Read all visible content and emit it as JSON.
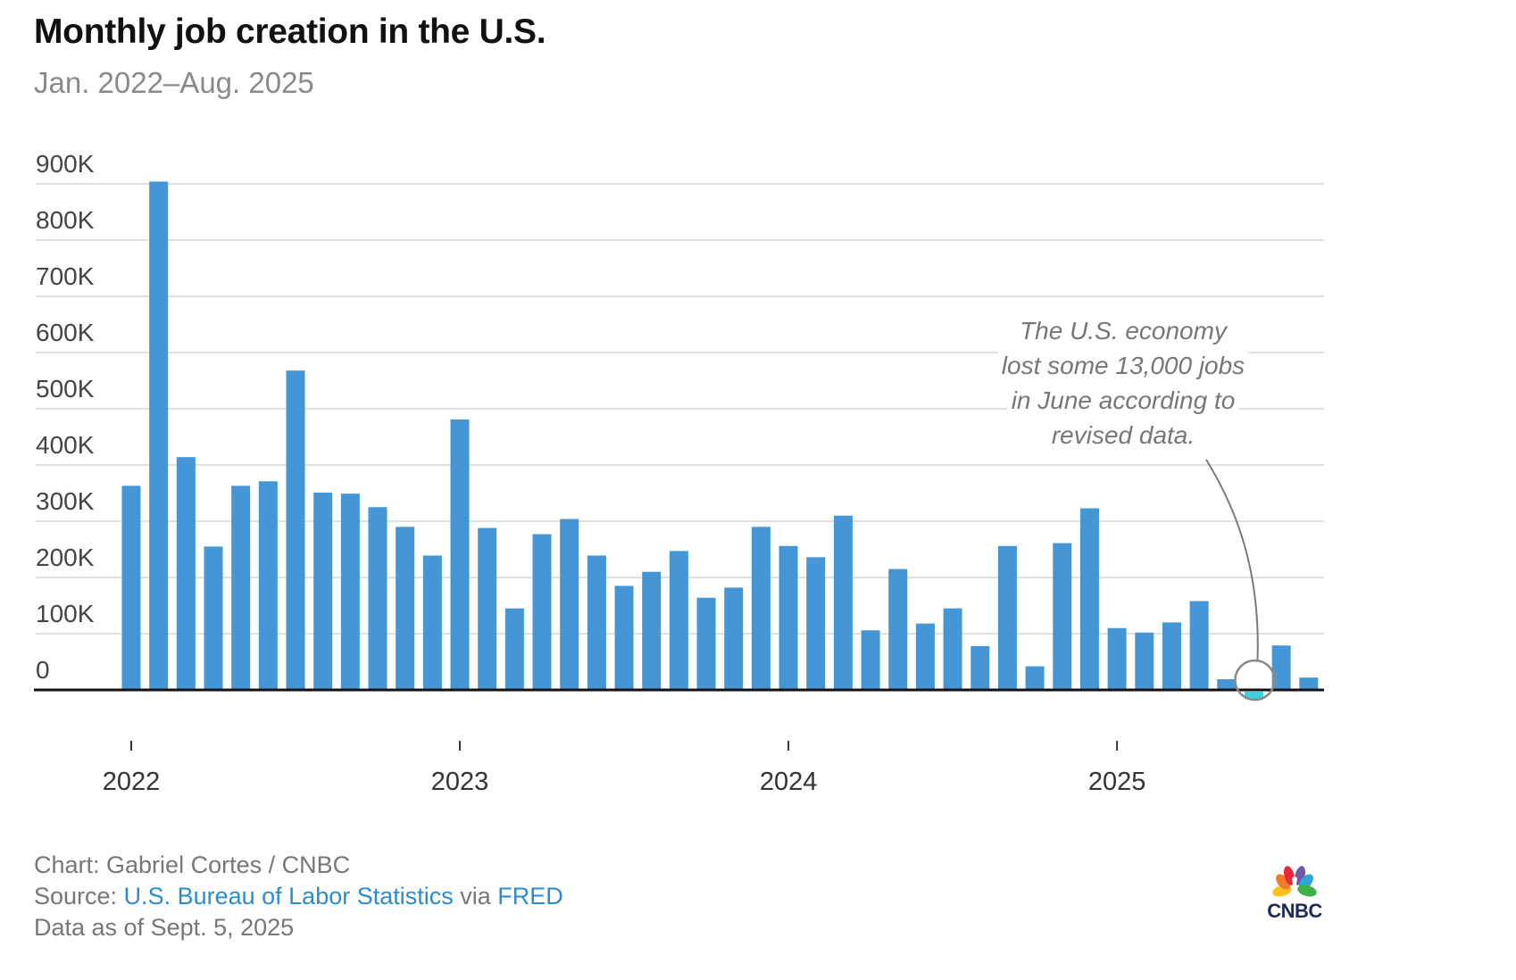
{
  "header": {
    "title": "Monthly job creation in the U.S.",
    "subtitle": "Jan. 2022–Aug. 2025"
  },
  "chart_data": {
    "type": "bar",
    "title": "Monthly job creation in the U.S.",
    "subtitle": "Jan. 2022–Aug. 2025",
    "xlabel": "",
    "ylabel": "",
    "ylim": [
      0,
      900000
    ],
    "y_ticks": [
      0,
      100000,
      200000,
      300000,
      400000,
      500000,
      600000,
      700000,
      800000,
      900000
    ],
    "y_tick_labels": [
      "0",
      "100K",
      "200K",
      "300K",
      "400K",
      "500K",
      "600K",
      "700K",
      "800K",
      "900K"
    ],
    "x_ticks": [
      "2022",
      "2023",
      "2024",
      "2025"
    ],
    "x_tick_months": [
      "Jan 2022",
      "Jan 2023",
      "Jan 2024",
      "Jan 2025"
    ],
    "grid": true,
    "bar_color": "#4596d6",
    "negative_bar_color": "#3fd0df",
    "categories": [
      "Jan 2022",
      "Feb 2022",
      "Mar 2022",
      "Apr 2022",
      "May 2022",
      "Jun 2022",
      "Jul 2022",
      "Aug 2022",
      "Sep 2022",
      "Oct 2022",
      "Nov 2022",
      "Dec 2022",
      "Jan 2023",
      "Feb 2023",
      "Mar 2023",
      "Apr 2023",
      "May 2023",
      "Jun 2023",
      "Jul 2023",
      "Aug 2023",
      "Sep 2023",
      "Oct 2023",
      "Nov 2023",
      "Dec 2023",
      "Jan 2024",
      "Feb 2024",
      "Mar 2024",
      "Apr 2024",
      "May 2024",
      "Jun 2024",
      "Jul 2024",
      "Aug 2024",
      "Sep 2024",
      "Oct 2024",
      "Nov 2024",
      "Dec 2024",
      "Jan 2025",
      "Feb 2025",
      "Mar 2025",
      "Apr 2025",
      "May 2025",
      "Jun 2025",
      "Jul 2025",
      "Aug 2025"
    ],
    "values": [
      363000,
      904000,
      414000,
      255000,
      363000,
      371000,
      568000,
      351000,
      349000,
      325000,
      290000,
      239000,
      481000,
      288000,
      145000,
      277000,
      304000,
      239000,
      185000,
      210000,
      247000,
      164000,
      182000,
      290000,
      256000,
      236000,
      310000,
      106000,
      215000,
      118000,
      145000,
      78000,
      256000,
      42000,
      261000,
      323000,
      110000,
      102000,
      120000,
      158000,
      19000,
      -13000,
      79000,
      22000
    ],
    "annotation": {
      "target": "Jun 2025",
      "lines": [
        "The U.S. economy",
        "lost some 13,000 jobs",
        "in June according to",
        "revised data."
      ]
    }
  },
  "footer": {
    "chart_credit": "Chart: Gabriel Cortes / CNBC",
    "source_prefix": "Source: ",
    "source_link1": "U.S. Bureau of Labor Statistics",
    "source_via": " via ",
    "source_link2": "FRED",
    "data_as_of": "Data as of Sept. 5, 2025"
  },
  "logo": {
    "text": "CNBC",
    "icon": "nbc-peacock-icon"
  }
}
